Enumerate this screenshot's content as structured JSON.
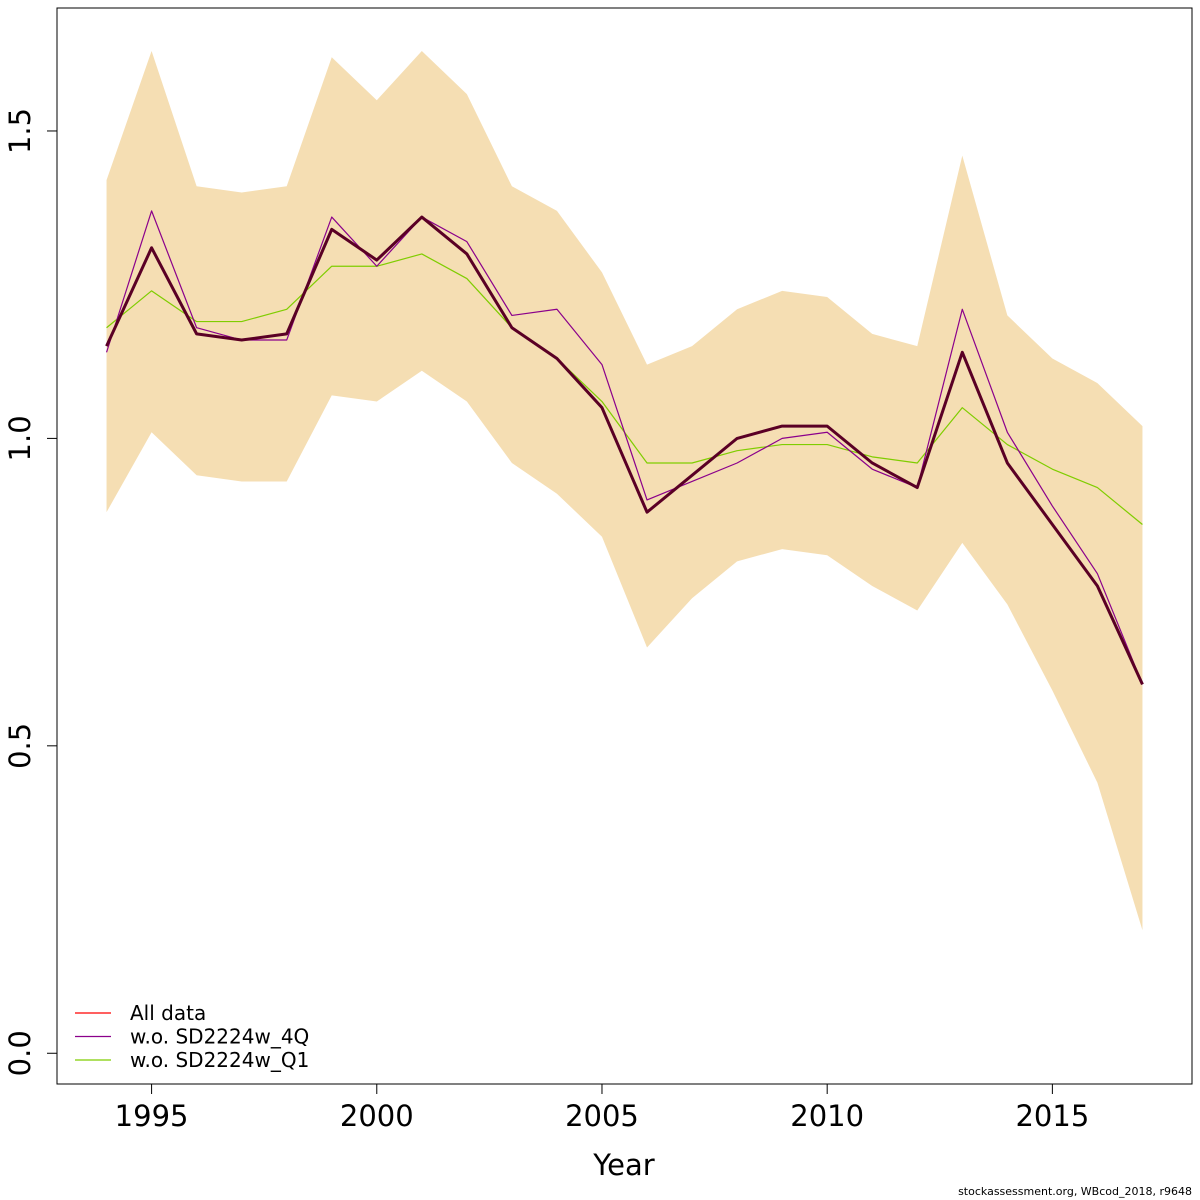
{
  "chart_data": {
    "type": "line",
    "xlabel": "Year",
    "ylabel": "",
    "xlim": [
      1992.9,
      2018.1
    ],
    "ylim": [
      -0.05,
      1.7
    ],
    "xticks": [
      1995,
      2000,
      2005,
      2010,
      2015
    ],
    "yticks": [
      0.0,
      0.5,
      1.0,
      1.5
    ],
    "ytick_labels": [
      "0.0",
      "0.5",
      "1.0",
      "1.5"
    ],
    "grid": false,
    "legend_position": "bottom-left",
    "x": [
      1994,
      1995,
      1996,
      1997,
      1998,
      1999,
      2000,
      2001,
      2002,
      2003,
      2004,
      2005,
      2006,
      2007,
      2008,
      2009,
      2010,
      2011,
      2012,
      2013,
      2014,
      2015,
      2016,
      2017
    ],
    "band": {
      "color": "#f5deb3",
      "upper": [
        1.42,
        1.63,
        1.41,
        1.4,
        1.41,
        1.62,
        1.55,
        1.63,
        1.56,
        1.41,
        1.37,
        1.27,
        1.12,
        1.15,
        1.21,
        1.24,
        1.23,
        1.17,
        1.15,
        1.46,
        1.2,
        1.13,
        1.09,
        1.02
      ],
      "lower": [
        0.88,
        1.01,
        0.94,
        0.93,
        0.93,
        1.07,
        1.06,
        1.11,
        1.06,
        0.96,
        0.91,
        0.84,
        0.66,
        0.74,
        0.8,
        0.82,
        0.81,
        0.76,
        0.72,
        0.83,
        0.73,
        0.59,
        0.44,
        0.2
      ]
    },
    "series": [
      {
        "name": "All data",
        "color": "#ff0000",
        "values": [
          1.15,
          1.31,
          1.17,
          1.16,
          1.17,
          1.34,
          1.29,
          1.36,
          1.3,
          1.18,
          1.13,
          1.05,
          0.88,
          0.94,
          1.0,
          1.02,
          1.02,
          0.96,
          0.92,
          1.14,
          0.96,
          0.86,
          0.76,
          0.6
        ]
      },
      {
        "name": "w.o. SD2224w_4Q",
        "color": "#8b008b",
        "values": [
          1.14,
          1.37,
          1.18,
          1.16,
          1.16,
          1.36,
          1.28,
          1.36,
          1.32,
          1.2,
          1.21,
          1.12,
          0.9,
          0.93,
          0.96,
          1.0,
          1.01,
          0.95,
          0.92,
          1.21,
          1.01,
          0.89,
          0.78,
          0.6
        ]
      },
      {
        "name": "w.o. SD2224w_Q1",
        "color": "#7fcd00",
        "values": [
          1.18,
          1.24,
          1.19,
          1.19,
          1.21,
          1.28,
          1.28,
          1.3,
          1.26,
          1.18,
          1.13,
          1.06,
          0.96,
          0.96,
          0.98,
          0.99,
          0.99,
          0.97,
          0.96,
          1.05,
          0.99,
          0.95,
          0.92,
          0.86
        ]
      }
    ],
    "combined_line_color": "#5a0025"
  },
  "footer": {
    "note": "stockassessment.org, WBcod_2018, r9648"
  }
}
